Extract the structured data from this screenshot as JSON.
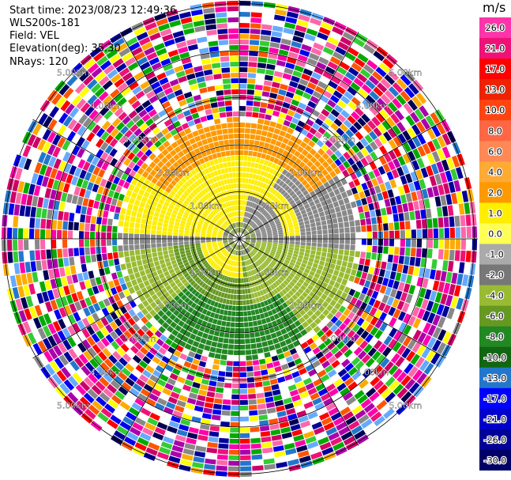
{
  "header": {
    "start_time": "Start time: 2023/08/23 12:49:36",
    "instrument": "WLS200s-181",
    "field": "Field: VEL",
    "elevation": "Elevation(deg): 35.30",
    "nrays": "NRays: 120"
  },
  "ppi": {
    "range_labels": [
      "1.00km",
      "2.00km",
      "3.00km",
      "4.00km",
      "5.00km"
    ]
  },
  "colorbar": {
    "unit": "m/s",
    "ticks": [
      "26.0",
      "21.0",
      "17.0",
      "13.0",
      "10.0",
      "8.0",
      "6.0",
      "4.0",
      "2.0",
      "1.0",
      "0.0",
      "-1.0",
      "-2.0",
      "-4.0",
      "-6.0",
      "-8.0",
      "-10.0",
      "-13.0",
      "-17.0",
      "-21.0",
      "-26.0",
      "-30.0"
    ],
    "colors": [
      "#ff33aa",
      "#ee1177",
      "#ff0000",
      "#ee2200",
      "#ff4411",
      "#ff6644",
      "#ff8855",
      "#ffaa33",
      "#ff9900",
      "#ffee00",
      "#ffff55",
      "#aaaaaa",
      "#777777",
      "#99bb33",
      "#669922",
      "#228822",
      "#116611",
      "#2277cc",
      "#0000ff",
      "#0000cc",
      "#000099",
      "#000066"
    ]
  }
}
